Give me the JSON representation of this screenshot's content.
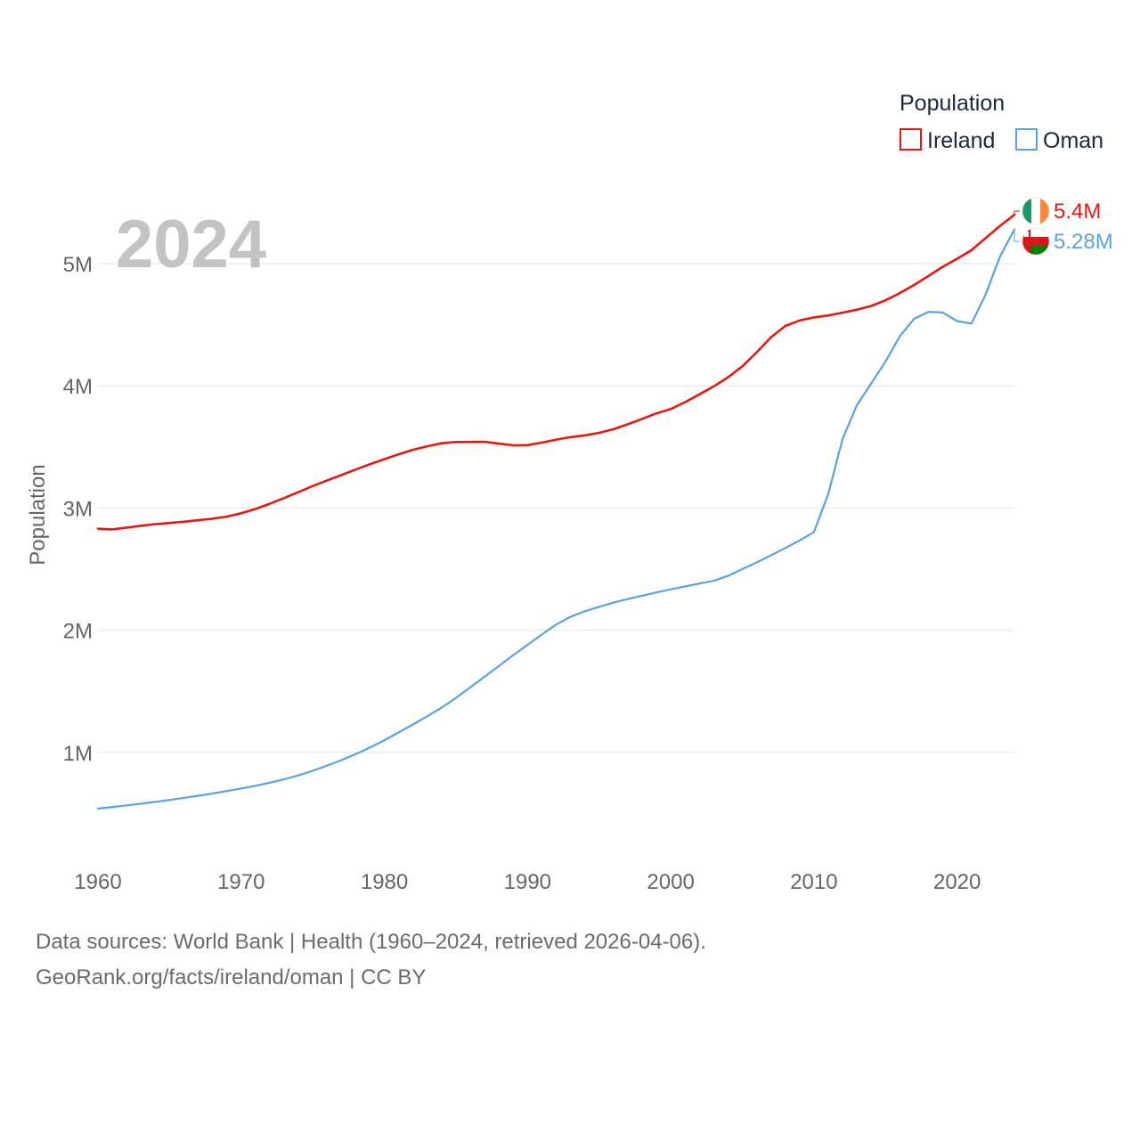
{
  "chart_data": {
    "type": "line",
    "title": "Population",
    "year_label": "2024",
    "ylabel": "Population",
    "xlabel": "",
    "xlim": [
      1960,
      2024
    ],
    "ylim": [
      0,
      5700000
    ],
    "x_ticks": [
      {
        "value": 1960,
        "label": "1960"
      },
      {
        "value": 1970,
        "label": "1970"
      },
      {
        "value": 1980,
        "label": "1980"
      },
      {
        "value": 1990,
        "label": "1990"
      },
      {
        "value": 2000,
        "label": "2000"
      },
      {
        "value": 2010,
        "label": "2010"
      },
      {
        "value": 2020,
        "label": "2020"
      }
    ],
    "y_ticks": [
      {
        "value": 1000000,
        "label": "1M"
      },
      {
        "value": 2000000,
        "label": "2M"
      },
      {
        "value": 3000000,
        "label": "3M"
      },
      {
        "value": 4000000,
        "label": "4M"
      },
      {
        "value": 5000000,
        "label": "5M"
      }
    ],
    "grid": true,
    "legend": {
      "title": "Population",
      "position": "top-right"
    },
    "x": [
      1960,
      1961,
      1962,
      1963,
      1964,
      1965,
      1966,
      1967,
      1968,
      1969,
      1970,
      1971,
      1972,
      1973,
      1974,
      1975,
      1976,
      1977,
      1978,
      1979,
      1980,
      1981,
      1982,
      1983,
      1984,
      1985,
      1986,
      1987,
      1988,
      1989,
      1990,
      1991,
      1992,
      1993,
      1994,
      1995,
      1996,
      1997,
      1998,
      1999,
      2000,
      2001,
      2002,
      2003,
      2004,
      2005,
      2006,
      2007,
      2008,
      2009,
      2010,
      2011,
      2012,
      2013,
      2014,
      2015,
      2016,
      2017,
      2018,
      2019,
      2020,
      2021,
      2022,
      2023,
      2024
    ],
    "series": [
      {
        "name": "Ireland",
        "color": "#e8170f",
        "end_label": "5.4M",
        "flag": "ireland-flag-icon",
        "values": [
          2830000,
          2825000,
          2840000,
          2855000,
          2868000,
          2878000,
          2888000,
          2900000,
          2913000,
          2930000,
          2957000,
          2992000,
          3035000,
          3082000,
          3130000,
          3180000,
          3226000,
          3270000,
          3315000,
          3359000,
          3400000,
          3440000,
          3477000,
          3505000,
          3530000,
          3540000,
          3541000,
          3542000,
          3527000,
          3513000,
          3515000,
          3535000,
          3560000,
          3580000,
          3595000,
          3615000,
          3645000,
          3685000,
          3730000,
          3775000,
          3810000,
          3867000,
          3930000,
          3996000,
          4070000,
          4160000,
          4274000,
          4398000,
          4490000,
          4535000,
          4560000,
          4576000,
          4599000,
          4623000,
          4654000,
          4700000,
          4760000,
          4826000,
          4900000,
          4975000,
          5040000,
          5110000,
          5210000,
          5310000,
          5400000
        ]
      },
      {
        "name": "Oman",
        "color": "#5ba3e0",
        "end_label": "5.28M",
        "flag": "oman-flag-icon",
        "values": [
          540000,
          553000,
          566000,
          580000,
          595000,
          611000,
          628000,
          645000,
          664000,
          684000,
          705000,
          727000,
          752000,
          780000,
          812000,
          850000,
          892000,
          937000,
          986000,
          1040000,
          1100000,
          1163000,
          1228000,
          1296000,
          1367000,
          1447000,
          1533000,
          1620000,
          1708000,
          1797000,
          1880000,
          1965000,
          2047000,
          2110000,
          2155000,
          2192000,
          2226000,
          2255000,
          2282000,
          2309000,
          2335000,
          2358000,
          2382000,
          2405000,
          2445000,
          2500000,
          2555000,
          2613000,
          2673000,
          2735000,
          2803000,
          3116000,
          3567000,
          3841000,
          4020000,
          4200000,
          4406000,
          4550000,
          4605000,
          4600000,
          4530000,
          4510000,
          4750000,
          5060000,
          5280000
        ]
      }
    ]
  },
  "footer": {
    "line1": "Data sources: World Bank | Health (1960–2024, retrieved 2026-04-06).",
    "line2": "GeoRank.org/facts/ireland/oman | CC BY"
  }
}
